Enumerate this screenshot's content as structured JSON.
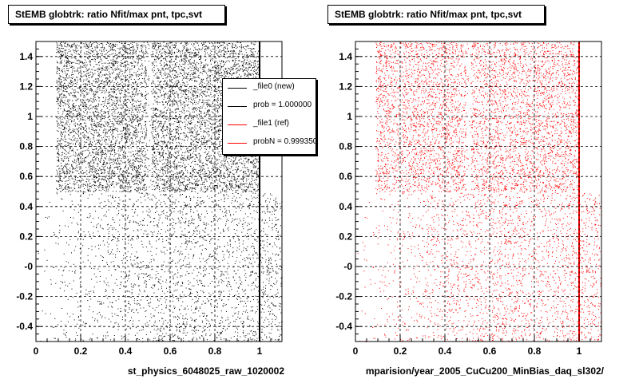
{
  "panels": [
    {
      "title": "StEMB globtrk: ratio Nfit/max pnt, tpc,svt",
      "x_axis_label": "st_physics_6048025_raw_1020002"
    },
    {
      "title": "StEMB globtrk: ratio Nfit/max pnt, tpc,svt",
      "x_axis_label": "mparision/year_2005_CuCu200_MinBias_daq_sl302/"
    }
  ],
  "legend": {
    "entries": [
      {
        "label": "_file0 (new)",
        "color": "#000000"
      },
      {
        "label": "prob = 1.000000",
        "color": "#000000"
      },
      {
        "label": "_file1 (ref)",
        "color": "#ff0000"
      },
      {
        "label": "probN = 0.999350",
        "color": "#ff0000"
      }
    ]
  },
  "footer": "",
  "chart_data": [
    {
      "type": "scatter",
      "title": "StEMB globtrk: ratio Nfit/max pnt, tpc,svt",
      "xlabel": "st_physics_6048025_raw_1020002",
      "ylabel": "",
      "xlim": [
        0,
        1.1
      ],
      "ylim": [
        -0.5,
        1.5
      ],
      "x_ticks": [
        "0",
        "0.2",
        "0.4",
        "0.6",
        "0.8",
        "1"
      ],
      "y_ticks": [
        "-0.4",
        "-0.2",
        "-0",
        "0.2",
        "0.4",
        "0.6",
        "0.8",
        "1",
        "1.2",
        "1.4"
      ],
      "grid": true,
      "series": [
        {
          "name": "_file0 (new)",
          "color": "#000000",
          "dense_region": {
            "x": [
              0.09,
              1.0
            ],
            "y": [
              0.5,
              1.5
            ]
          },
          "sparse_region": {
            "x": [
              0.0,
              1.1
            ],
            "y": [
              -0.5,
              0.5
            ]
          },
          "gaps_x": [
            0.505,
            0.2
          ]
        }
      ]
    },
    {
      "type": "scatter",
      "title": "StEMB globtrk: ratio Nfit/max pnt, tpc,svt",
      "xlabel": "mparision/year_2005_CuCu200_MinBias_daq_sl302/",
      "ylabel": "",
      "xlim": [
        0,
        1.1
      ],
      "ylim": [
        -0.5,
        1.5
      ],
      "x_ticks": [
        "0",
        "0.2",
        "0.4",
        "0.6",
        "0.8",
        "1"
      ],
      "y_ticks": [
        "-0.4",
        "-0.2",
        "-0",
        "0.2",
        "0.4",
        "0.6",
        "0.8",
        "1",
        "1.2",
        "1.4"
      ],
      "grid": true,
      "series": [
        {
          "name": "_file1 (ref)",
          "color": "#ff0000",
          "dense_region": {
            "x": [
              0.09,
              1.0
            ],
            "y": [
              0.5,
              1.5
            ]
          },
          "sparse_region": {
            "x": [
              0.0,
              1.1
            ],
            "y": [
              -0.5,
              0.5
            ]
          },
          "gaps_x": [
            0.505,
            0.2
          ]
        }
      ]
    }
  ]
}
